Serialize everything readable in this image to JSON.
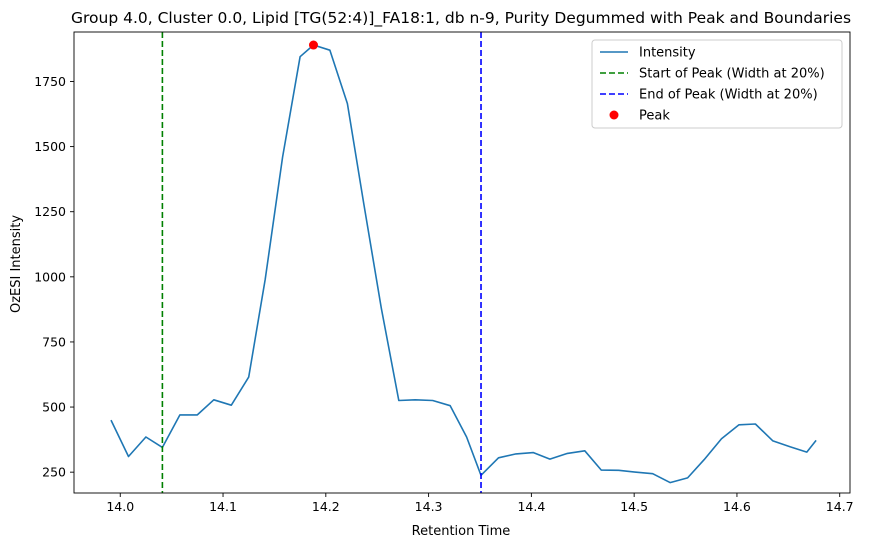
{
  "chart_data": {
    "type": "line",
    "title": "Group 4.0, Cluster 0.0, Lipid [TG(52:4)]_FA18:1, db n-9, Purity Degummed with Peak and Boundaries",
    "xlabel": "Retention Time",
    "ylabel": "OzESI Intensity",
    "xlim": [
      13.955,
      14.71
    ],
    "ylim": [
      170,
      1940
    ],
    "xticks": [
      14.0,
      14.1,
      14.2,
      14.3,
      14.4,
      14.5,
      14.6,
      14.7
    ],
    "xtick_labels": [
      "14.0",
      "14.1",
      "14.2",
      "14.3",
      "14.4",
      "14.5",
      "14.6",
      "14.7"
    ],
    "yticks": [
      250,
      500,
      750,
      1000,
      1250,
      1500,
      1750
    ],
    "ytick_labels": [
      "250",
      "500",
      "750",
      "1000",
      "1250",
      "1500",
      "1750"
    ],
    "grid": false,
    "legend_position": "top-right",
    "series": [
      {
        "name": "Intensity",
        "color": "#1f77b4",
        "x": [
          13.991,
          14.008,
          14.025,
          14.041,
          14.058,
          14.075,
          14.091,
          14.108,
          14.125,
          14.141,
          14.158,
          14.175,
          14.188,
          14.204,
          14.221,
          14.237,
          14.254,
          14.271,
          14.287,
          14.304,
          14.321,
          14.337,
          14.351,
          14.368,
          14.385,
          14.402,
          14.418,
          14.435,
          14.452,
          14.468,
          14.485,
          14.502,
          14.518,
          14.535,
          14.552,
          14.568,
          14.585,
          14.602,
          14.618,
          14.635,
          14.652,
          14.668,
          14.677
        ],
        "y": [
          450,
          310,
          385,
          345,
          470,
          470,
          528,
          507,
          615,
          990,
          1460,
          1845,
          1890,
          1870,
          1665,
          1280,
          880,
          525,
          528,
          525,
          505,
          385,
          238,
          305,
          320,
          325,
          300,
          322,
          332,
          258,
          257,
          250,
          244,
          210,
          228,
          298,
          378,
          432,
          435,
          370,
          347,
          327,
          372
        ]
      }
    ],
    "vlines": [
      {
        "name": "Start of Peak (Width at 20%)",
        "x": 14.041,
        "color": "#008000",
        "style": "dashed"
      },
      {
        "name": "End of Peak (Width at 20%)",
        "x": 14.351,
        "color": "#0000ff",
        "style": "dashed"
      }
    ],
    "points": [
      {
        "name": "Peak",
        "x": 14.188,
        "y": 1890,
        "color": "#ff0000"
      }
    ]
  }
}
